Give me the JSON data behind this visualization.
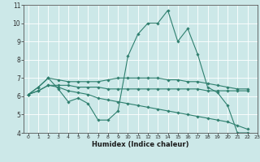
{
  "title": "",
  "xlabel": "Humidex (Indice chaleur)",
  "ylabel": "",
  "background_color": "#cce8e8",
  "grid_color": "#ffffff",
  "line_color": "#2e7f6e",
  "xlim": [
    -0.5,
    23
  ],
  "ylim": [
    4,
    11
  ],
  "yticks": [
    4,
    5,
    6,
    7,
    8,
    9,
    10,
    11
  ],
  "xticks": [
    0,
    1,
    2,
    3,
    4,
    5,
    6,
    7,
    8,
    9,
    10,
    11,
    12,
    13,
    14,
    15,
    16,
    17,
    18,
    19,
    20,
    21,
    22,
    23
  ],
  "series": [
    [
      6.1,
      6.5,
      7.0,
      6.4,
      5.7,
      5.9,
      5.6,
      4.7,
      4.7,
      5.2,
      8.2,
      9.4,
      10.0,
      10.0,
      10.7,
      9.0,
      9.7,
      8.3,
      6.5,
      6.2,
      5.5,
      4.0,
      4.0,
      null
    ],
    [
      6.1,
      6.5,
      7.0,
      6.9,
      6.8,
      6.8,
      6.8,
      6.8,
      6.9,
      7.0,
      7.0,
      7.0,
      7.0,
      7.0,
      6.9,
      6.9,
      6.8,
      6.8,
      6.7,
      6.6,
      6.5,
      6.4,
      6.4,
      null
    ],
    [
      6.1,
      6.3,
      6.6,
      6.6,
      6.6,
      6.5,
      6.5,
      6.5,
      6.4,
      6.4,
      6.4,
      6.4,
      6.4,
      6.4,
      6.4,
      6.4,
      6.4,
      6.4,
      6.3,
      6.3,
      6.3,
      6.3,
      6.3,
      null
    ],
    [
      6.1,
      6.3,
      6.6,
      6.5,
      6.3,
      6.2,
      6.1,
      5.9,
      5.8,
      5.7,
      5.6,
      5.5,
      5.4,
      5.3,
      5.2,
      5.1,
      5.0,
      4.9,
      4.8,
      4.7,
      4.6,
      4.4,
      4.2,
      null
    ]
  ],
  "marker": "D",
  "markersize": 1.8,
  "linewidth": 0.8,
  "xlabel_fontsize": 6.0,
  "tick_fontsize_x": 4.5,
  "tick_fontsize_y": 5.5
}
